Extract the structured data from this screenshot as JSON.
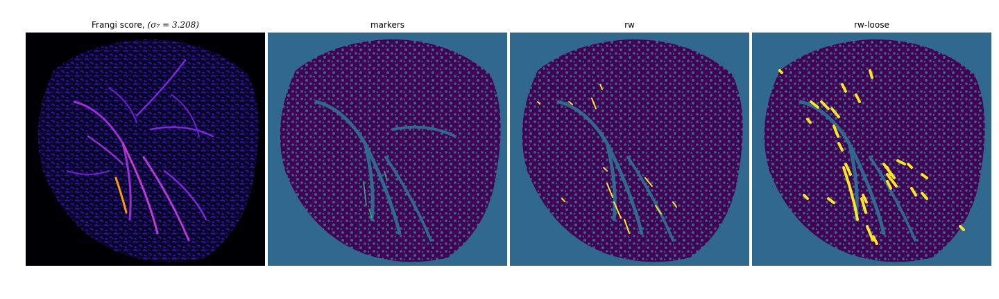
{
  "figure": {
    "panels": [
      {
        "title": "Frangi score,",
        "math": "(σ₇ = 3.208)",
        "content": "frangi-vesselness-heatmap"
      },
      {
        "title": "markers",
        "content": "segmentation-markers"
      },
      {
        "title": "rw",
        "content": "random-walker-segmentation"
      },
      {
        "title": "rw-loose",
        "content": "random-walker-loose-segmentation"
      }
    ],
    "colors": {
      "background_teal": "#31688e",
      "tissue_purple": "#440154",
      "vessel_yellow": "#fde725",
      "marker_green": "#35b779",
      "frangi_black": "#000004",
      "frangi_dark_blue": "#1a0a6e",
      "frangi_purple": "#7b2ad6",
      "frangi_orange": "#fb9b06"
    },
    "colormaps": [
      "magma",
      "viridis"
    ]
  }
}
